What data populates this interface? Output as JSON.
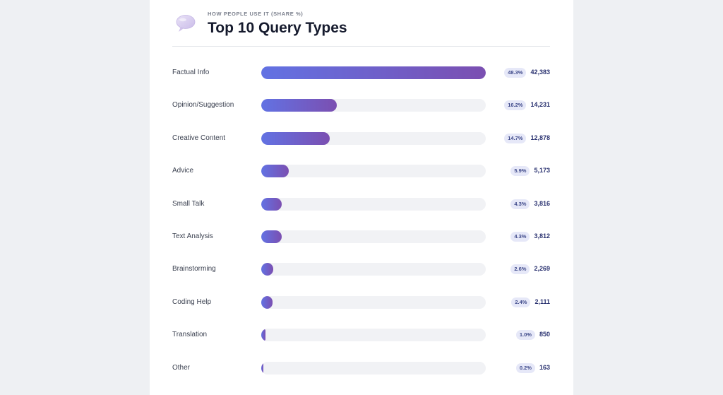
{
  "header": {
    "eyebrow": "HOW PEOPLE USE IT (SHARE %)",
    "title": "Top 10 Query Types",
    "icon": "speech-bubble-icon"
  },
  "colors": {
    "bar_start": "#6272e3",
    "bar_end": "#7b4fb1",
    "track": "#f1f2f5",
    "badge_bg": "#e6e8f8",
    "count_text": "#2a3270"
  },
  "chart_data": {
    "type": "bar",
    "orientation": "horizontal",
    "title": "Top 10 Query Types",
    "subtitle": "HOW PEOPLE USE IT (SHARE %)",
    "categories": [
      "Factual Info",
      "Opinion/Suggestion",
      "Creative Content",
      "Advice",
      "Small Talk",
      "Text Analysis",
      "Brainstorming",
      "Coding Help",
      "Translation",
      "Other"
    ],
    "shares": [
      48.3,
      16.2,
      14.7,
      5.9,
      4.3,
      4.3,
      2.6,
      2.4,
      1.0,
      0.2
    ],
    "share_labels": [
      "48.3%",
      "16.2%",
      "14.7%",
      "5.9%",
      "4.3%",
      "4.3%",
      "2.6%",
      "2.4%",
      "1.0%",
      "0.2%"
    ],
    "values": [
      42383,
      14231,
      12878,
      5173,
      3816,
      3812,
      2269,
      2111,
      850,
      163
    ],
    "value_labels": [
      "42,383",
      "14,231",
      "12,878",
      "5,173",
      "3,816",
      "3,812",
      "2,269",
      "2,111",
      "850",
      "163"
    ],
    "xlim": [
      0,
      42383
    ],
    "grid": false,
    "legend": "none"
  }
}
